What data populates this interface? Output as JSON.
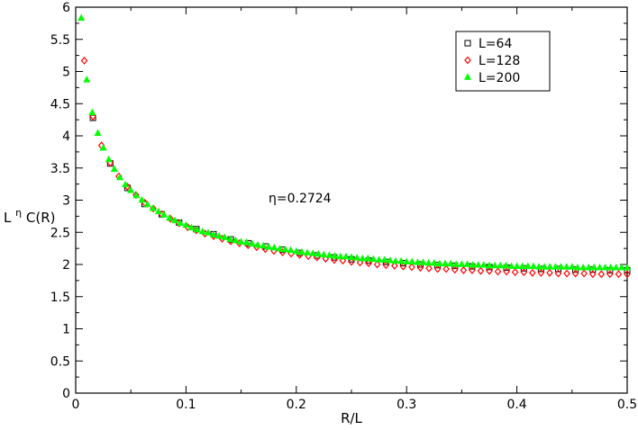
{
  "chart_data": {
    "type": "scatter",
    "title": "",
    "xlabel": "R/L",
    "ylabel_base": "L",
    "ylabel_superscript": "η",
    "ylabel_rest": "C(R)",
    "xlim": [
      0,
      0.5
    ],
    "ylim": [
      0,
      6
    ],
    "x_ticks": [
      0,
      0.1,
      0.2,
      0.3,
      0.4,
      0.5
    ],
    "x_tick_labels": [
      "0",
      "0.1",
      "0.2",
      "0.3",
      "0.4",
      "0.5"
    ],
    "y_ticks": [
      0,
      0.5,
      1,
      1.5,
      2,
      2.5,
      3,
      3.5,
      4,
      4.5,
      5,
      5.5,
      6
    ],
    "y_tick_labels": [
      "0",
      "0.5",
      "1",
      "1.5",
      "2",
      "2.5",
      "3",
      "3.5",
      "4",
      "4.5",
      "5",
      "5.5",
      "6"
    ],
    "grid": false,
    "legend_position": "top-right",
    "annotation": "η=0.2724",
    "series": [
      {
        "name": "L=64",
        "marker": "square",
        "color": "#000000",
        "points": [
          [
            0.0156,
            4.28
          ],
          [
            0.0313,
            3.57
          ],
          [
            0.0469,
            3.19
          ],
          [
            0.0625,
            2.94
          ],
          [
            0.0781,
            2.78
          ],
          [
            0.0938,
            2.65
          ],
          [
            0.1094,
            2.55
          ],
          [
            0.125,
            2.47
          ],
          [
            0.1406,
            2.39
          ],
          [
            0.1563,
            2.33
          ],
          [
            0.1719,
            2.28
          ],
          [
            0.1875,
            2.23
          ],
          [
            0.2031,
            2.18
          ],
          [
            0.2188,
            2.14
          ],
          [
            0.2344,
            2.11
          ],
          [
            0.25,
            2.08
          ],
          [
            0.2656,
            2.06
          ],
          [
            0.2813,
            2.04
          ],
          [
            0.2969,
            2.02
          ],
          [
            0.3125,
            2.0
          ],
          [
            0.3281,
            1.99
          ],
          [
            0.3438,
            1.98
          ],
          [
            0.3594,
            1.97
          ],
          [
            0.375,
            1.96
          ],
          [
            0.3906,
            1.95
          ],
          [
            0.4063,
            1.94
          ],
          [
            0.4219,
            1.93
          ],
          [
            0.4375,
            1.93
          ],
          [
            0.4531,
            1.92
          ],
          [
            0.4688,
            1.92
          ],
          [
            0.4844,
            1.91
          ],
          [
            0.5,
            1.91
          ]
        ]
      },
      {
        "name": "L=128",
        "marker": "diamond",
        "color": "#ff0000",
        "points": [
          [
            0.0078,
            5.17
          ],
          [
            0.0156,
            4.3
          ],
          [
            0.0234,
            3.85
          ],
          [
            0.0313,
            3.58
          ],
          [
            0.0391,
            3.37
          ],
          [
            0.0469,
            3.21
          ],
          [
            0.0547,
            3.08
          ],
          [
            0.0625,
            2.96
          ],
          [
            0.0703,
            2.87
          ],
          [
            0.0781,
            2.78
          ],
          [
            0.0859,
            2.71
          ],
          [
            0.0938,
            2.64
          ],
          [
            0.1016,
            2.58
          ],
          [
            0.1094,
            2.53
          ],
          [
            0.1172,
            2.48
          ],
          [
            0.125,
            2.44
          ],
          [
            0.1328,
            2.4
          ],
          [
            0.1406,
            2.36
          ],
          [
            0.1484,
            2.33
          ],
          [
            0.1563,
            2.3
          ],
          [
            0.1641,
            2.27
          ],
          [
            0.1719,
            2.24
          ],
          [
            0.1797,
            2.21
          ],
          [
            0.1875,
            2.19
          ],
          [
            0.1953,
            2.17
          ],
          [
            0.2031,
            2.15
          ],
          [
            0.2109,
            2.13
          ],
          [
            0.2188,
            2.11
          ],
          [
            0.2266,
            2.09
          ],
          [
            0.2344,
            2.07
          ],
          [
            0.2422,
            2.06
          ],
          [
            0.25,
            2.04
          ],
          [
            0.2578,
            2.03
          ],
          [
            0.2656,
            2.02
          ],
          [
            0.2734,
            2.0
          ],
          [
            0.2813,
            1.99
          ],
          [
            0.2891,
            1.98
          ],
          [
            0.2969,
            1.97
          ],
          [
            0.3047,
            1.96
          ],
          [
            0.3125,
            1.95
          ],
          [
            0.3203,
            1.94
          ],
          [
            0.3281,
            1.93
          ],
          [
            0.3359,
            1.93
          ],
          [
            0.3438,
            1.92
          ],
          [
            0.3516,
            1.91
          ],
          [
            0.3594,
            1.91
          ],
          [
            0.3672,
            1.9
          ],
          [
            0.375,
            1.9
          ],
          [
            0.3828,
            1.89
          ],
          [
            0.3906,
            1.89
          ],
          [
            0.3984,
            1.88
          ],
          [
            0.4063,
            1.88
          ],
          [
            0.4141,
            1.87
          ],
          [
            0.4219,
            1.87
          ],
          [
            0.4297,
            1.87
          ],
          [
            0.4375,
            1.86
          ],
          [
            0.4453,
            1.86
          ],
          [
            0.4531,
            1.86
          ],
          [
            0.4609,
            1.86
          ],
          [
            0.4688,
            1.85
          ],
          [
            0.4766,
            1.85
          ],
          [
            0.4844,
            1.85
          ],
          [
            0.4922,
            1.85
          ],
          [
            0.5,
            1.85
          ]
        ]
      },
      {
        "name": "L=200",
        "marker": "triangle",
        "color": "#00ff00",
        "points": [
          [
            0.005,
            5.83
          ],
          [
            0.01,
            4.87
          ],
          [
            0.015,
            4.36
          ],
          [
            0.02,
            4.04
          ],
          [
            0.025,
            3.81
          ],
          [
            0.03,
            3.63
          ],
          [
            0.035,
            3.48
          ],
          [
            0.04,
            3.35
          ],
          [
            0.045,
            3.24
          ],
          [
            0.05,
            3.15
          ],
          [
            0.055,
            3.07
          ],
          [
            0.06,
            3.0
          ],
          [
            0.065,
            2.93
          ],
          [
            0.07,
            2.87
          ],
          [
            0.075,
            2.82
          ],
          [
            0.08,
            2.77
          ],
          [
            0.085,
            2.72
          ],
          [
            0.09,
            2.68
          ],
          [
            0.095,
            2.64
          ],
          [
            0.1,
            2.61
          ],
          [
            0.105,
            2.57
          ],
          [
            0.11,
            2.54
          ],
          [
            0.115,
            2.51
          ],
          [
            0.12,
            2.49
          ],
          [
            0.125,
            2.46
          ],
          [
            0.13,
            2.44
          ],
          [
            0.135,
            2.42
          ],
          [
            0.14,
            2.39
          ],
          [
            0.145,
            2.37
          ],
          [
            0.15,
            2.35
          ],
          [
            0.155,
            2.34
          ],
          [
            0.16,
            2.32
          ],
          [
            0.165,
            2.3
          ],
          [
            0.17,
            2.29
          ],
          [
            0.175,
            2.27
          ],
          [
            0.18,
            2.26
          ],
          [
            0.185,
            2.24
          ],
          [
            0.19,
            2.23
          ],
          [
            0.195,
            2.22
          ],
          [
            0.2,
            2.2
          ],
          [
            0.205,
            2.19
          ],
          [
            0.21,
            2.18
          ],
          [
            0.215,
            2.17
          ],
          [
            0.22,
            2.16
          ],
          [
            0.225,
            2.15
          ],
          [
            0.23,
            2.14
          ],
          [
            0.235,
            2.13
          ],
          [
            0.24,
            2.12
          ],
          [
            0.245,
            2.12
          ],
          [
            0.25,
            2.11
          ],
          [
            0.255,
            2.1
          ],
          [
            0.26,
            2.09
          ],
          [
            0.265,
            2.09
          ],
          [
            0.27,
            2.08
          ],
          [
            0.275,
            2.07
          ],
          [
            0.28,
            2.07
          ],
          [
            0.285,
            2.06
          ],
          [
            0.29,
            2.05
          ],
          [
            0.295,
            2.05
          ],
          [
            0.3,
            2.04
          ],
          [
            0.305,
            2.04
          ],
          [
            0.31,
            2.03
          ],
          [
            0.315,
            2.03
          ],
          [
            0.32,
            2.02
          ],
          [
            0.325,
            2.02
          ],
          [
            0.33,
            2.01
          ],
          [
            0.335,
            2.01
          ],
          [
            0.34,
            2.01
          ],
          [
            0.345,
            2.0
          ],
          [
            0.35,
            2.0
          ],
          [
            0.355,
            2.0
          ],
          [
            0.36,
            1.99
          ],
          [
            0.365,
            1.99
          ],
          [
            0.37,
            1.99
          ],
          [
            0.375,
            1.98
          ],
          [
            0.38,
            1.98
          ],
          [
            0.385,
            1.98
          ],
          [
            0.39,
            1.98
          ],
          [
            0.395,
            1.97
          ],
          [
            0.4,
            1.97
          ],
          [
            0.405,
            1.97
          ],
          [
            0.41,
            1.97
          ],
          [
            0.415,
            1.97
          ],
          [
            0.42,
            1.96
          ],
          [
            0.425,
            1.96
          ],
          [
            0.43,
            1.96
          ],
          [
            0.435,
            1.96
          ],
          [
            0.44,
            1.96
          ],
          [
            0.445,
            1.96
          ],
          [
            0.45,
            1.96
          ],
          [
            0.455,
            1.95
          ],
          [
            0.46,
            1.95
          ],
          [
            0.465,
            1.95
          ],
          [
            0.47,
            1.95
          ],
          [
            0.475,
            1.95
          ],
          [
            0.48,
            1.95
          ],
          [
            0.485,
            1.95
          ],
          [
            0.49,
            1.95
          ],
          [
            0.495,
            1.95
          ],
          [
            0.5,
            1.95
          ]
        ]
      }
    ]
  }
}
